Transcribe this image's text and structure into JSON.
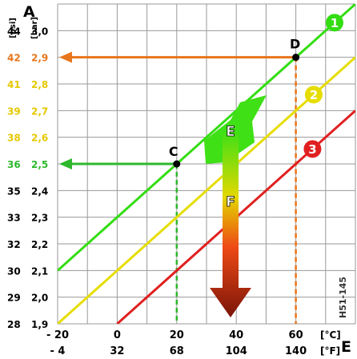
{
  "chart_data": {
    "type": "line",
    "corner_labels": {
      "top_left": "A",
      "bottom_right": "E"
    },
    "x_axis": {
      "celsius_ticks": [
        "- 20",
        "0",
        "20",
        "40",
        "60"
      ],
      "fahrenheit_ticks": [
        "- 4",
        "32",
        "68",
        "104",
        "140"
      ],
      "celsius_unit": "[°C]",
      "fahrenheit_unit": "[°F]",
      "range_c": [
        -20,
        80
      ]
    },
    "y_axis": {
      "psi_unit": "[psi]",
      "bar_unit": "[bar]",
      "range_bar": [
        1.9,
        3.1
      ],
      "ticks": [
        {
          "psi": "44",
          "bar": "3,0",
          "value": 3.0,
          "color": "#000000"
        },
        {
          "psi": "42",
          "bar": "2,9",
          "value": 2.9,
          "color": "#e8761c"
        },
        {
          "psi": "41",
          "bar": "2,8",
          "value": 2.8,
          "color": "#e6c800"
        },
        {
          "psi": "39",
          "bar": "2,7",
          "value": 2.7,
          "color": "#e6c800"
        },
        {
          "psi": "38",
          "bar": "2,6",
          "value": 2.6,
          "color": "#e6c800"
        },
        {
          "psi": "36",
          "bar": "2,5",
          "value": 2.5,
          "color": "#2eb82e"
        },
        {
          "psi": "35",
          "bar": "2,4",
          "value": 2.4,
          "color": "#000000"
        },
        {
          "psi": "33",
          "bar": "2,3",
          "value": 2.3,
          "color": "#000000"
        },
        {
          "psi": "32",
          "bar": "2,2",
          "value": 2.2,
          "color": "#000000"
        },
        {
          "psi": "30",
          "bar": "2,1",
          "value": 2.1,
          "color": "#000000"
        },
        {
          "psi": "29",
          "bar": "2,0",
          "value": 2.0,
          "color": "#000000"
        },
        {
          "psi": "28",
          "bar": "1,9",
          "value": 1.9,
          "color": "#000000"
        }
      ]
    },
    "grid": true,
    "series": [
      {
        "name": "1",
        "color": "#33dd11",
        "x": [
          -20,
          80
        ],
        "y": [
          2.1,
          3.1
        ]
      },
      {
        "name": "2",
        "color": "#e6dd00",
        "x": [
          -20,
          80
        ],
        "y": [
          1.9,
          2.9
        ]
      },
      {
        "name": "3",
        "color": "#e02020",
        "x": [
          0,
          80
        ],
        "y": [
          1.9,
          2.7
        ]
      }
    ],
    "points": [
      {
        "label": "C",
        "x": 20,
        "y": 2.5,
        "color": "#2eb82e"
      },
      {
        "label": "D",
        "x": 60,
        "y": 2.9,
        "color": "#e8761c"
      }
    ],
    "arrow_labels": {
      "E": "E",
      "F": "F"
    },
    "annotation": "H51-145"
  }
}
